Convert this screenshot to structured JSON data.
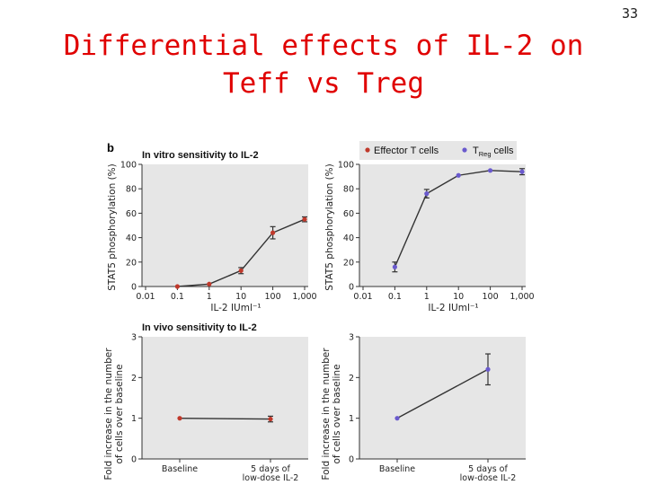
{
  "slide": {
    "title_line1": "Differential effects of IL-2 on",
    "title_line2": "Teff vs Treg",
    "page_number": "33"
  },
  "figure": {
    "panel_letter": "b",
    "section_in_vitro": "In vitro sensitivity to IL-2",
    "section_in_vivo": "In vivo sensitivity to IL-2",
    "legend": {
      "effector": "Effector T cells",
      "treg_prefix": "T",
      "treg_sub": "Reg",
      "treg_suffix": " cells"
    },
    "colors": {
      "effector": "#c0392b",
      "treg": "#6a5acd"
    }
  },
  "chart_data": [
    {
      "type": "line",
      "name": "in-vitro-effector",
      "xscale": "log",
      "xticks": [
        "0.01",
        "0.1",
        "1",
        "10",
        "100",
        "1,000"
      ],
      "xlabel": "IL-2 IUml⁻¹",
      "ylabel": "STAT5 phosphorylation (%)",
      "ylim": [
        0,
        100
      ],
      "yticks": [
        "0",
        "20",
        "40",
        "60",
        "80",
        "100"
      ],
      "series": [
        {
          "name": "Effector T cells",
          "x": [
            0.1,
            1,
            10,
            100,
            1000
          ],
          "y": [
            0,
            2,
            13,
            44,
            55
          ],
          "err": [
            0,
            0,
            2.5,
            5,
            2
          ]
        }
      ]
    },
    {
      "type": "line",
      "name": "in-vitro-treg",
      "xscale": "log",
      "xticks": [
        "0.01",
        "0.1",
        "1",
        "10",
        "100",
        "1,000"
      ],
      "xlabel": "IL-2 IUml⁻¹",
      "ylabel": "STAT5 phosphorylation (%)",
      "ylim": [
        0,
        100
      ],
      "yticks": [
        "0",
        "20",
        "40",
        "60",
        "80",
        "100"
      ],
      "series": [
        {
          "name": "TReg cells",
          "x": [
            0.1,
            1,
            10,
            100,
            1000
          ],
          "y": [
            16,
            76,
            91,
            95,
            94
          ],
          "err": [
            4,
            3.5,
            0,
            0,
            2.5
          ]
        }
      ]
    },
    {
      "type": "line",
      "name": "in-vivo-effector",
      "categories": [
        "Baseline",
        "5 days of\nlow-dose IL-2"
      ],
      "ylabel": "Fold increase in the number of cells over baseline",
      "ylim": [
        0,
        3
      ],
      "yticks": [
        "0",
        "1",
        "2",
        "3"
      ],
      "series": [
        {
          "name": "Effector T cells",
          "values": [
            1.0,
            0.98
          ],
          "err": [
            0,
            0.07
          ]
        }
      ]
    },
    {
      "type": "line",
      "name": "in-vivo-treg",
      "categories": [
        "Baseline",
        "5 days of\nlow-dose IL-2"
      ],
      "ylabel": "Fold increase in the number of cells over baseline",
      "ylim": [
        0,
        3
      ],
      "yticks": [
        "0",
        "1",
        "2",
        "3"
      ],
      "series": [
        {
          "name": "TReg cells",
          "values": [
            1.0,
            2.2
          ],
          "err": [
            0,
            0.38
          ]
        }
      ]
    }
  ]
}
